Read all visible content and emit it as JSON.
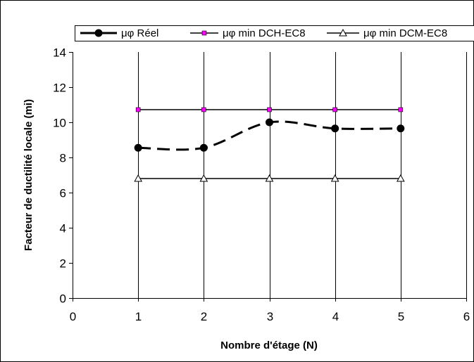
{
  "chart_data": {
    "type": "line",
    "title": "",
    "xlabel": "Nombre d'étage (N)",
    "ylabel": "Facteur de ductilité locale (mi)",
    "xlim": [
      0,
      6
    ],
    "ylim": [
      0,
      14
    ],
    "xticks": [
      "0",
      "1",
      "2",
      "3",
      "4",
      "5",
      "6"
    ],
    "yticks": [
      "0",
      "2",
      "4",
      "6",
      "8",
      "10",
      "12",
      "14"
    ],
    "grid": "vertical",
    "legend_position": "top",
    "x": [
      1,
      2,
      3,
      4,
      5
    ],
    "series": [
      {
        "name": "μφ Réel",
        "values": [
          8.55,
          8.55,
          10.0,
          9.65,
          9.65
        ],
        "color": "#000000",
        "line": "dashed-smooth",
        "marker": "filled-circle"
      },
      {
        "name": "μφ min DCH-EC8",
        "values": [
          10.72,
          10.72,
          10.72,
          10.72,
          10.72
        ],
        "color": "#000000",
        "marker_color": "#ff00ff",
        "line": "solid",
        "marker": "square"
      },
      {
        "name": "μφ min DCM-EC8",
        "values": [
          6.8,
          6.8,
          6.8,
          6.8,
          6.8
        ],
        "color": "#000000",
        "line": "solid",
        "marker": "open-triangle"
      }
    ]
  }
}
